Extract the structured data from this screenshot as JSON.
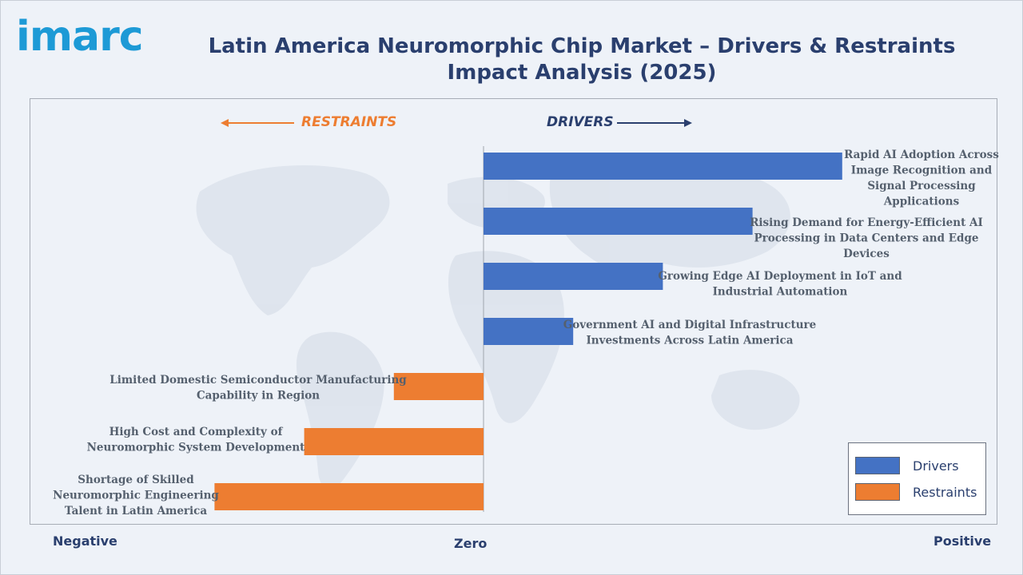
{
  "brand": {
    "logo_text": "imarc"
  },
  "title": "Latin America Neuromorphic Chip Market – Drivers & Restraints Impact Analysis (2025)",
  "direction_labels": {
    "restraints": "RESTRAINTS",
    "drivers": "DRIVERS"
  },
  "axis_labels": {
    "negative": "Negative",
    "zero": "Zero",
    "positive": "Positive"
  },
  "colors": {
    "drivers": "#4472c4",
    "restraints": "#ed7d31",
    "title": "#2a3f6e",
    "logo": "#1d9ad6"
  },
  "legend": [
    {
      "label": "Drivers",
      "color": "#4472c4"
    },
    {
      "label": "Restraints",
      "color": "#ed7d31"
    }
  ],
  "chart_data": {
    "type": "bar",
    "orientation": "horizontal",
    "title": "Latin America Neuromorphic Chip Market – Drivers & Restraints Impact Analysis (2025)",
    "xlim": [
      -3,
      4.3
    ],
    "categories": [
      "Rapid AI Adoption Across Image Recognition and Signal Processing Applications",
      "Rising Demand for Energy-Efficient AI Processing in Data Centers and Edge Devices",
      "Growing Edge AI Deployment in IoT and Industrial Automation",
      "Government AI and Digital Infrastructure Investments Across Latin America",
      "Limited Domestic Semiconductor Manufacturing Capability in Region",
      "High Cost and Complexity of Neuromorphic System Development",
      "Shortage of Skilled Neuromorphic Engineering Talent in Latin America"
    ],
    "series": [
      {
        "name": "Drivers",
        "values": [
          4,
          3,
          2,
          1,
          null,
          null,
          null
        ]
      },
      {
        "name": "Restraints",
        "values": [
          null,
          null,
          null,
          null,
          -1,
          -2,
          -3
        ]
      }
    ],
    "legend_position": "bottom-right",
    "grid": false
  }
}
